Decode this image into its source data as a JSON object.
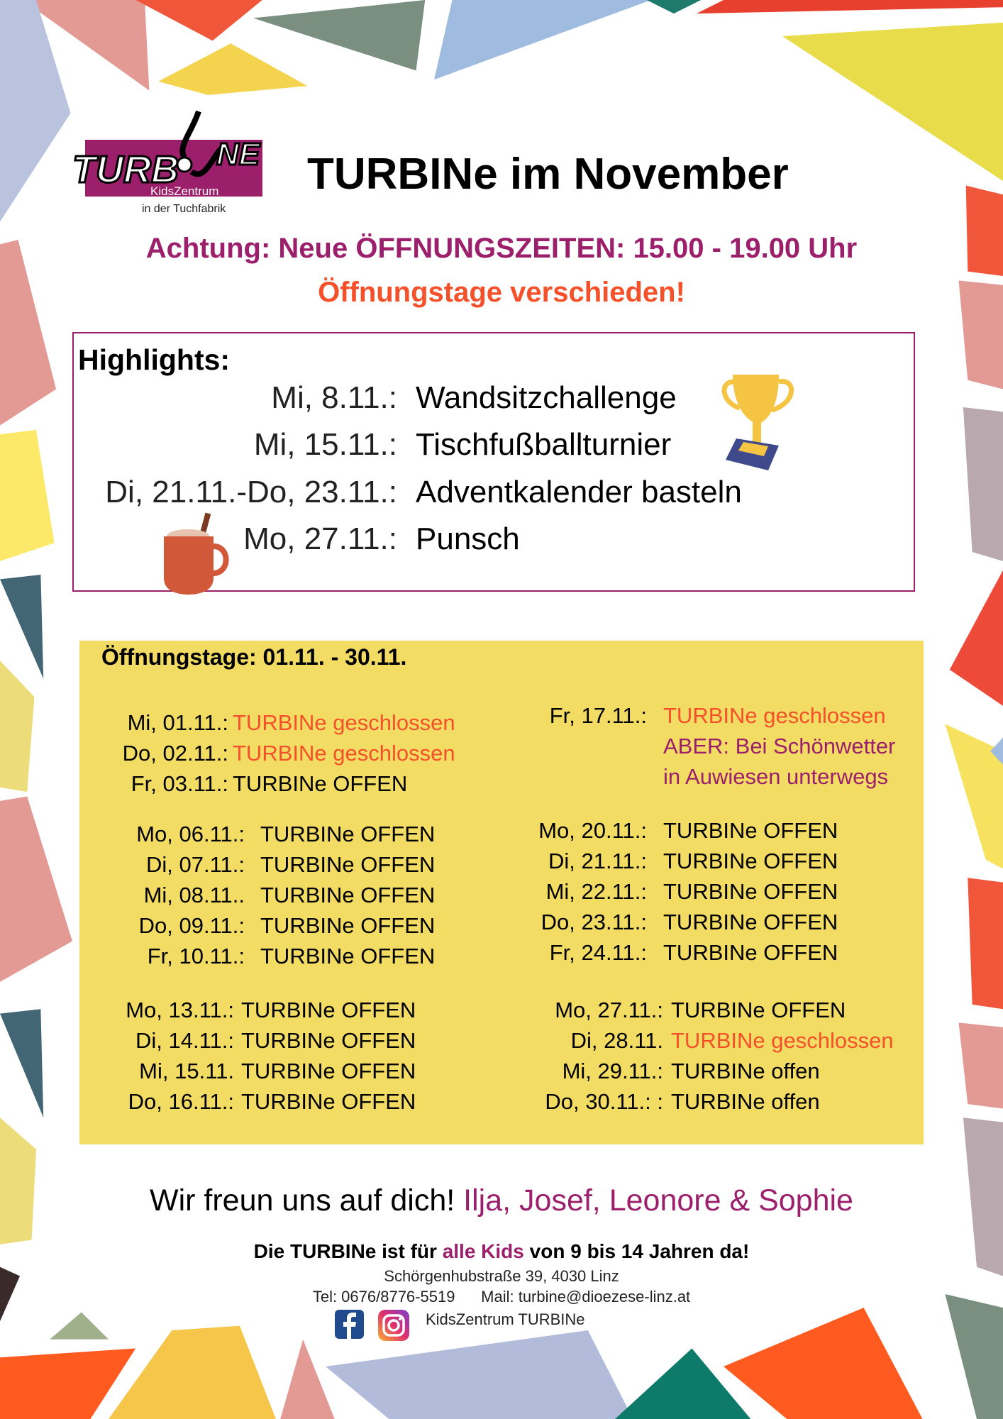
{
  "logo": {
    "main": "TURBINe",
    "sub1": "KidsZentrum",
    "sub2": "in der Tuchfabrik",
    "color": "#9B1F6B"
  },
  "header": {
    "title": "TURBINe im November"
  },
  "notice": {
    "line1": "Achtung: Neue ÖFFNUNGSZEITEN: 15.00 - 19.00 Uhr",
    "line2": "Öffnungstage verschieden!"
  },
  "highlights": {
    "label": "Highlights:",
    "items": [
      {
        "date": "Mi, 8.11.:",
        "event": "Wandsitzchallenge"
      },
      {
        "date": "Mi, 15.11.:",
        "event": "Tischfußballturnier"
      },
      {
        "date": "Di, 21.11.-Do, 23.11.:",
        "event": "Adventkalender basteln"
      },
      {
        "date": "Mo, 27.11.:",
        "event": "Punsch"
      }
    ],
    "icons": [
      "trophy-icon",
      "hot-drink-mug-icon"
    ]
  },
  "schedule": {
    "heading": "Öffnungstage: 01.11. - 30.11.",
    "days": [
      {
        "date": "Mi, 01.11.:",
        "status": "TURBINe geschlossen",
        "closed": true
      },
      {
        "date": "Do, 02.11.:",
        "status": "TURBINe geschlossen",
        "closed": true
      },
      {
        "date": "Fr, 03.11.:",
        "status": "TURBINe OFFEN"
      },
      {
        "date": "Mo, 06.11.:",
        "status": "TURBINe OFFEN"
      },
      {
        "date": "Di, 07.11.:",
        "status": "TURBINe OFFEN"
      },
      {
        "date": "Mi, 08.11..",
        "status": "TURBINe OFFEN"
      },
      {
        "date": "Do, 09.11.:",
        "status": "TURBINe OFFEN"
      },
      {
        "date": "Fr, 10.11.:",
        "status": "TURBINe OFFEN"
      },
      {
        "date": "Mo, 13.11.:",
        "status": "TURBINe OFFEN"
      },
      {
        "date": "Di, 14.11.:",
        "status": "TURBINe OFFEN"
      },
      {
        "date": "Mi, 15.11.",
        "status": "TURBINe OFFEN"
      },
      {
        "date": "Do, 16.11.:",
        "status": "TURBINe OFFEN"
      },
      {
        "date": "Fr, 17.11.:",
        "status": "TURBINe geschlossen",
        "closed": true,
        "note1": "ABER: Bei Schönwetter",
        "note2": "in Auwiesen unterwegs"
      },
      {
        "date": "Mo, 20.11.:",
        "status": "TURBINe OFFEN"
      },
      {
        "date": "Di, 21.11.:",
        "status": "TURBINe OFFEN"
      },
      {
        "date": "Mi, 22.11.:",
        "status": "TURBINe OFFEN"
      },
      {
        "date": "Do, 23.11.:",
        "status": "TURBINe OFFEN"
      },
      {
        "date": "Fr, 24.11.:",
        "status": "TURBINe OFFEN"
      },
      {
        "date": "Mo, 27.11.:",
        "status": "TURBINe OFFEN"
      },
      {
        "date": "Di, 28.11.",
        "status": "TURBINe geschlossen",
        "closed": true
      },
      {
        "date": "Mi, 29.11.:",
        "status": "TURBINe offen"
      },
      {
        "date": "Do, 30.11.: :",
        "status": "TURBINe offen"
      }
    ]
  },
  "footer": {
    "thanks": "Wir freun uns auf dich!",
    "team": "Ilja, Josef, Leonore & Sophie",
    "sub_a": "Die TURBINe ist für ",
    "sub_b": "alle Kids",
    "sub_c": " von 9 bis 14 Jahren da!",
    "address": "Schörgenhubstraße 39, 4030 Linz",
    "tel": "Tel: 0676/8776-5519",
    "mail": "Mail: turbine@dioezese-linz.at",
    "social": "KidsZentrum TURBINe",
    "social_icons": [
      "facebook-icon",
      "instagram-icon"
    ]
  },
  "colors": {
    "purple": "#9B1F6B",
    "orange": "#F4502A",
    "schedule_bg": "#F2DC64"
  }
}
